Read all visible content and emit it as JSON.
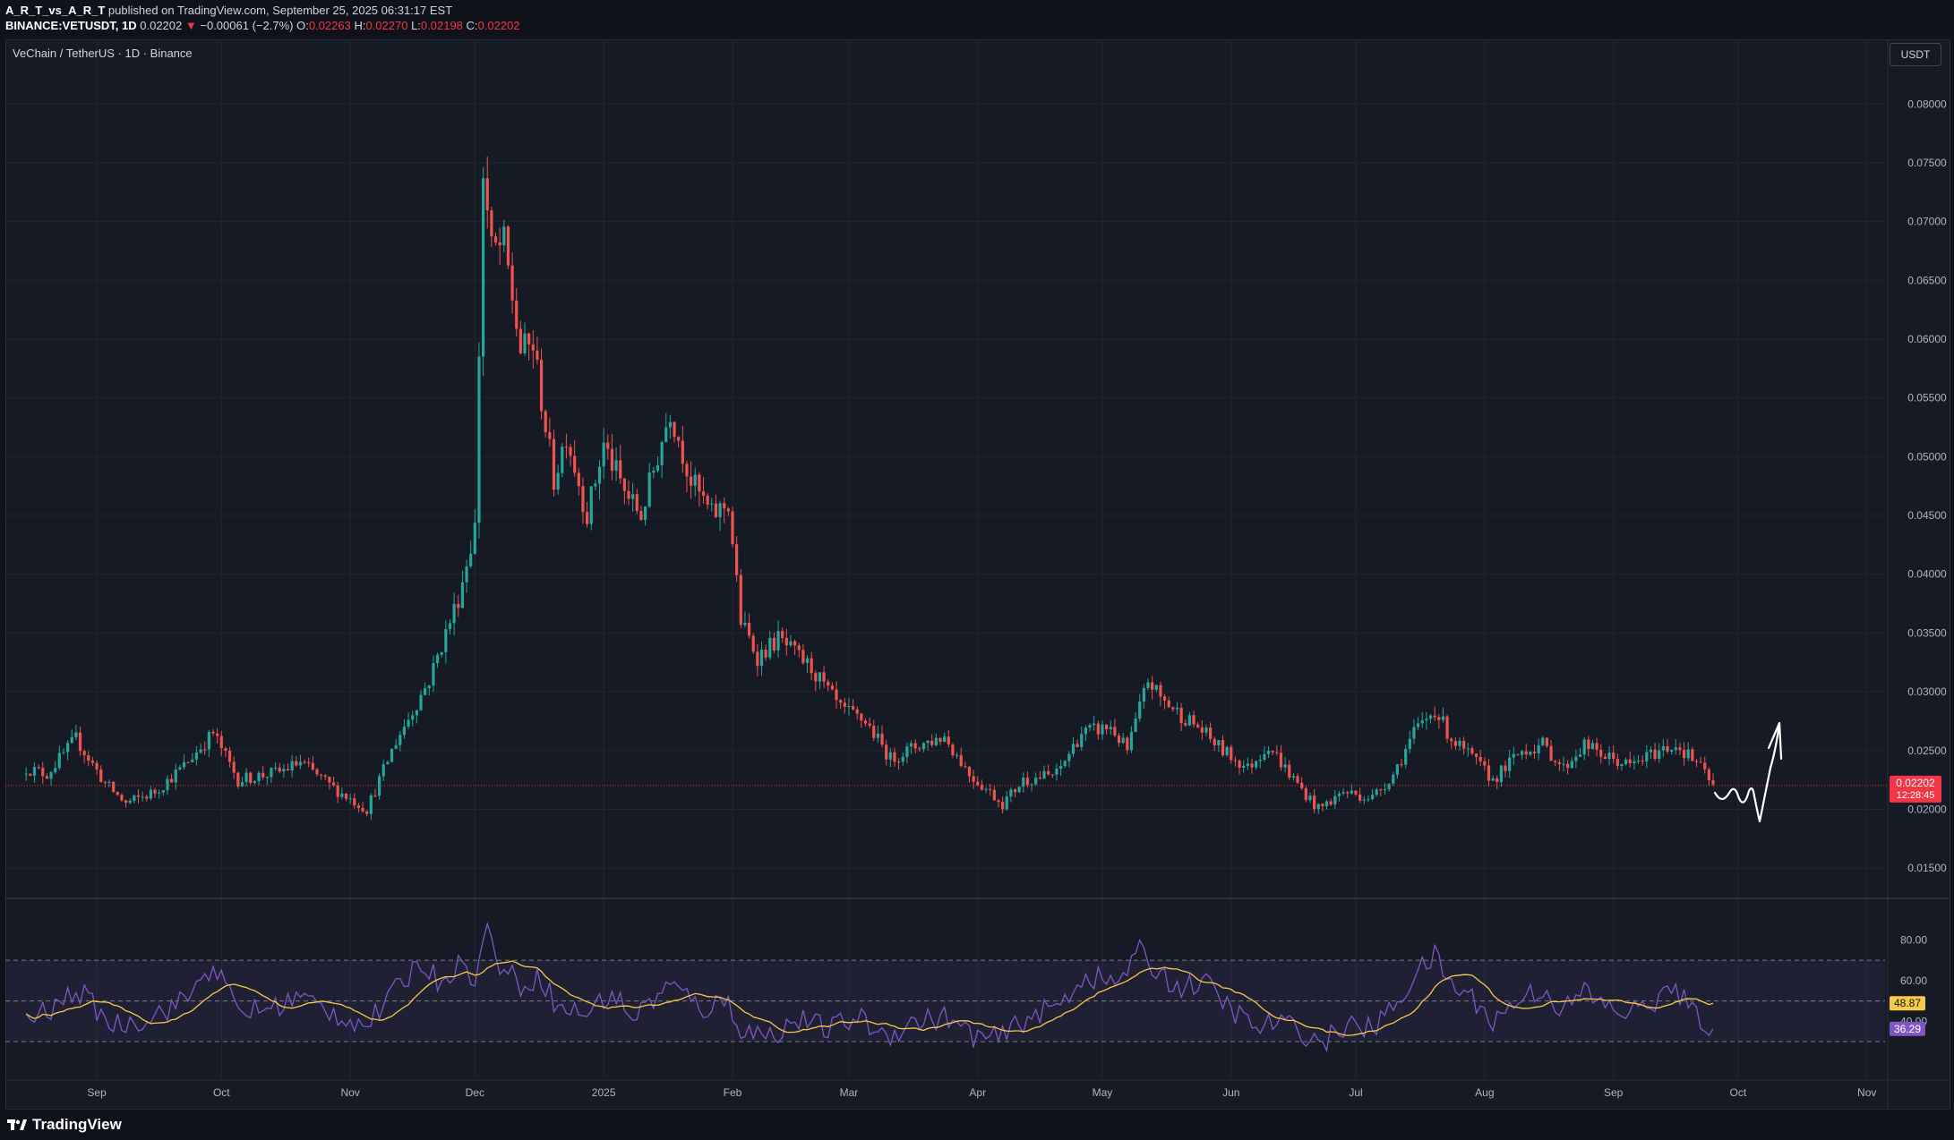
{
  "header": {
    "publisher": "A_R_T_vs_A_R_T",
    "published_text": "published on TradingView.com, September 25, 2025 06:31:17 EST",
    "symbol": "BINANCE:VETUSDT, 1D",
    "last": "0.02202",
    "change_arrow": "▼",
    "change": "−0.00061 (−2.7%)",
    "o_label": "O:",
    "o_value": "0.02263",
    "h_label": "H:",
    "h_value": "0.02270",
    "l_label": "L:",
    "l_value": "0.02198",
    "c_label": "C:",
    "c_value": "0.02202"
  },
  "chart_title": "VeChain / TetherUS · 1D · Binance",
  "currency_button": "USDT",
  "footer": {
    "brand": "TradingView"
  },
  "colors": {
    "up": "#26a69a",
    "down": "#ef5350",
    "background": "#161a25",
    "grid": "#232632",
    "rsi": "#7e57c2",
    "rsi_ma": "#f7c948",
    "price_line": "#f23645"
  },
  "chart_data": [
    {
      "type": "candlestick",
      "price_axis_ticks": [
        "0.08000",
        "0.07500",
        "0.07000",
        "0.06500",
        "0.06000",
        "0.05500",
        "0.05000",
        "0.04500",
        "0.04000",
        "0.03500",
        "0.03000",
        "0.02500",
        "0.02000",
        "0.01500"
      ],
      "ylim": [
        0.0125,
        0.0855
      ],
      "current_price_label": "0.02202",
      "countdown": "12:28:45",
      "time_axis_ticks": [
        "Sep",
        "Oct",
        "Nov",
        "Dec",
        "2025",
        "Feb",
        "Mar",
        "Apr",
        "May",
        "Jun",
        "Jul",
        "Aug",
        "Sep",
        "Oct",
        "Nov"
      ],
      "price_path_keypoints": [
        {
          "date": "2024-08-15",
          "price": 0.0235
        },
        {
          "date": "2024-08-20",
          "price": 0.023
        },
        {
          "date": "2024-08-27",
          "price": 0.026
        },
        {
          "date": "2024-09-03",
          "price": 0.0222
        },
        {
          "date": "2024-09-08",
          "price": 0.0205
        },
        {
          "date": "2024-09-15",
          "price": 0.0215
        },
        {
          "date": "2024-09-22",
          "price": 0.0237
        },
        {
          "date": "2024-09-29",
          "price": 0.0265
        },
        {
          "date": "2024-10-05",
          "price": 0.0225
        },
        {
          "date": "2024-10-15",
          "price": 0.0232
        },
        {
          "date": "2024-10-20",
          "price": 0.024
        },
        {
          "date": "2024-10-28",
          "price": 0.0218
        },
        {
          "date": "2024-11-05",
          "price": 0.02
        },
        {
          "date": "2024-11-12",
          "price": 0.0258
        },
        {
          "date": "2024-11-20",
          "price": 0.031
        },
        {
          "date": "2024-11-27",
          "price": 0.038
        },
        {
          "date": "2024-12-01",
          "price": 0.044
        },
        {
          "date": "2024-12-03",
          "price": 0.074
        },
        {
          "date": "2024-12-05",
          "price": 0.0675
        },
        {
          "date": "2024-12-08",
          "price": 0.068
        },
        {
          "date": "2024-12-12",
          "price": 0.059
        },
        {
          "date": "2024-12-15",
          "price": 0.0595
        },
        {
          "date": "2024-12-20",
          "price": 0.048
        },
        {
          "date": "2024-12-23",
          "price": 0.052
        },
        {
          "date": "2024-12-28",
          "price": 0.045
        },
        {
          "date": "2025-01-01",
          "price": 0.051
        },
        {
          "date": "2025-01-06",
          "price": 0.047
        },
        {
          "date": "2025-01-10",
          "price": 0.045
        },
        {
          "date": "2025-01-17",
          "price": 0.054
        },
        {
          "date": "2025-01-22",
          "price": 0.048
        },
        {
          "date": "2025-01-27",
          "price": 0.045
        },
        {
          "date": "2025-01-31",
          "price": 0.046
        },
        {
          "date": "2025-02-03",
          "price": 0.036
        },
        {
          "date": "2025-02-07",
          "price": 0.033
        },
        {
          "date": "2025-02-12",
          "price": 0.0345
        },
        {
          "date": "2025-02-20",
          "price": 0.032
        },
        {
          "date": "2025-02-27",
          "price": 0.0285
        },
        {
          "date": "2025-03-05",
          "price": 0.0275
        },
        {
          "date": "2025-03-11",
          "price": 0.0243
        },
        {
          "date": "2025-03-18",
          "price": 0.0255
        },
        {
          "date": "2025-03-24",
          "price": 0.0262
        },
        {
          "date": "2025-03-30",
          "price": 0.023
        },
        {
          "date": "2025-04-07",
          "price": 0.0205
        },
        {
          "date": "2025-04-12",
          "price": 0.0225
        },
        {
          "date": "2025-04-20",
          "price": 0.023
        },
        {
          "date": "2025-04-26",
          "price": 0.0265
        },
        {
          "date": "2025-05-03",
          "price": 0.027
        },
        {
          "date": "2025-05-07",
          "price": 0.025
        },
        {
          "date": "2025-05-12",
          "price": 0.031
        },
        {
          "date": "2025-05-15",
          "price": 0.0295
        },
        {
          "date": "2025-05-20",
          "price": 0.028
        },
        {
          "date": "2025-05-24",
          "price": 0.027
        },
        {
          "date": "2025-05-30",
          "price": 0.025
        },
        {
          "date": "2025-06-05",
          "price": 0.0235
        },
        {
          "date": "2025-06-10",
          "price": 0.0255
        },
        {
          "date": "2025-06-15",
          "price": 0.023
        },
        {
          "date": "2025-06-22",
          "price": 0.02
        },
        {
          "date": "2025-06-28",
          "price": 0.0215
        },
        {
          "date": "2025-07-05",
          "price": 0.021
        },
        {
          "date": "2025-07-10",
          "price": 0.023
        },
        {
          "date": "2025-07-15",
          "price": 0.0265
        },
        {
          "date": "2025-07-20",
          "price": 0.0285
        },
        {
          "date": "2025-07-24",
          "price": 0.026
        },
        {
          "date": "2025-07-30",
          "price": 0.024
        },
        {
          "date": "2025-08-03",
          "price": 0.0225
        },
        {
          "date": "2025-08-10",
          "price": 0.025
        },
        {
          "date": "2025-08-15",
          "price": 0.0255
        },
        {
          "date": "2025-08-20",
          "price": 0.0235
        },
        {
          "date": "2025-08-25",
          "price": 0.0255
        },
        {
          "date": "2025-08-30",
          "price": 0.0245
        },
        {
          "date": "2025-09-05",
          "price": 0.0237
        },
        {
          "date": "2025-09-12",
          "price": 0.025
        },
        {
          "date": "2025-09-16",
          "price": 0.0255
        },
        {
          "date": "2025-09-21",
          "price": 0.024
        },
        {
          "date": "2025-09-25",
          "price": 0.022
        }
      ]
    },
    {
      "type": "line",
      "name": "RSI",
      "axis_ticks": [
        "80.00",
        "60.00",
        "40.00"
      ],
      "ylim": [
        12,
        100
      ],
      "bands": [
        70,
        50,
        30
      ],
      "rsi_value": "36.29",
      "rsi_ma_value": "48.87",
      "rsi_keypoints": [
        {
          "date": "2024-08-15",
          "value": 41
        },
        {
          "date": "2024-08-22",
          "value": 46
        },
        {
          "date": "2024-08-27",
          "value": 56
        },
        {
          "date": "2024-09-05",
          "value": 38
        },
        {
          "date": "2024-09-12",
          "value": 41
        },
        {
          "date": "2024-09-22",
          "value": 50
        },
        {
          "date": "2024-09-29",
          "value": 68
        },
        {
          "date": "2024-10-05",
          "value": 45
        },
        {
          "date": "2024-10-12",
          "value": 46
        },
        {
          "date": "2024-10-20",
          "value": 52
        },
        {
          "date": "2024-10-28",
          "value": 44
        },
        {
          "date": "2024-11-05",
          "value": 38
        },
        {
          "date": "2024-11-12",
          "value": 55
        },
        {
          "date": "2024-11-18",
          "value": 70
        },
        {
          "date": "2024-11-22",
          "value": 60
        },
        {
          "date": "2024-11-27",
          "value": 68
        },
        {
          "date": "2024-12-01",
          "value": 62
        },
        {
          "date": "2024-12-04",
          "value": 85
        },
        {
          "date": "2024-12-07",
          "value": 68
        },
        {
          "date": "2024-12-12",
          "value": 58
        },
        {
          "date": "2024-12-17",
          "value": 62
        },
        {
          "date": "2024-12-21",
          "value": 46
        },
        {
          "date": "2024-12-28",
          "value": 44
        },
        {
          "date": "2025-01-03",
          "value": 54
        },
        {
          "date": "2025-01-08",
          "value": 42
        },
        {
          "date": "2025-01-17",
          "value": 58
        },
        {
          "date": "2025-01-25",
          "value": 46
        },
        {
          "date": "2025-01-31",
          "value": 50
        },
        {
          "date": "2025-02-03",
          "value": 36
        },
        {
          "date": "2025-02-10",
          "value": 33
        },
        {
          "date": "2025-02-17",
          "value": 41
        },
        {
          "date": "2025-02-24",
          "value": 36
        },
        {
          "date": "2025-03-03",
          "value": 42
        },
        {
          "date": "2025-03-10",
          "value": 33
        },
        {
          "date": "2025-03-17",
          "value": 40
        },
        {
          "date": "2025-03-24",
          "value": 42
        },
        {
          "date": "2025-03-31",
          "value": 33
        },
        {
          "date": "2025-04-06",
          "value": 31
        },
        {
          "date": "2025-04-13",
          "value": 42
        },
        {
          "date": "2025-04-20",
          "value": 47
        },
        {
          "date": "2025-04-27",
          "value": 63
        },
        {
          "date": "2025-05-04",
          "value": 58
        },
        {
          "date": "2025-05-10",
          "value": 74
        },
        {
          "date": "2025-05-14",
          "value": 65
        },
        {
          "date": "2025-05-20",
          "value": 56
        },
        {
          "date": "2025-05-25",
          "value": 60
        },
        {
          "date": "2025-05-31",
          "value": 48
        },
        {
          "date": "2025-06-07",
          "value": 36
        },
        {
          "date": "2025-06-12",
          "value": 40
        },
        {
          "date": "2025-06-18",
          "value": 35
        },
        {
          "date": "2025-06-23",
          "value": 29
        },
        {
          "date": "2025-06-28",
          "value": 38
        },
        {
          "date": "2025-07-05",
          "value": 36
        },
        {
          "date": "2025-07-10",
          "value": 47
        },
        {
          "date": "2025-07-15",
          "value": 62
        },
        {
          "date": "2025-07-20",
          "value": 72
        },
        {
          "date": "2025-07-24",
          "value": 58
        },
        {
          "date": "2025-07-30",
          "value": 50
        },
        {
          "date": "2025-08-03",
          "value": 40
        },
        {
          "date": "2025-08-10",
          "value": 52
        },
        {
          "date": "2025-08-15",
          "value": 56
        },
        {
          "date": "2025-08-20",
          "value": 45
        },
        {
          "date": "2025-08-25",
          "value": 55
        },
        {
          "date": "2025-08-30",
          "value": 47
        },
        {
          "date": "2025-09-05",
          "value": 44
        },
        {
          "date": "2025-09-10",
          "value": 49
        },
        {
          "date": "2025-09-16",
          "value": 56
        },
        {
          "date": "2025-09-20",
          "value": 44
        },
        {
          "date": "2025-09-25",
          "value": 36.29
        }
      ]
    }
  ]
}
